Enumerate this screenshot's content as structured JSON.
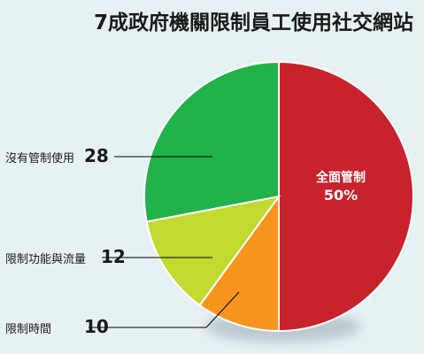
{
  "chart_data": {
    "type": "pie",
    "title": "7成政府機關限制員工使用社交網站",
    "slices": [
      {
        "label": "全面管制",
        "value": 50,
        "value_text": "50%",
        "color": "#c8232d"
      },
      {
        "label": "限制時間",
        "value": 10,
        "value_text": "10",
        "color": "#f7941e"
      },
      {
        "label": "限制功能與流量",
        "value": 12,
        "value_text": "12",
        "color": "#c2d92f"
      },
      {
        "label": "沒有管制使用",
        "value": 28,
        "value_text": "28",
        "color": "#22b24c"
      }
    ],
    "start_angle_deg": 0,
    "direction": "clockwise",
    "label_placement": "left-with-leader-lines",
    "background_color": "#e6f1f4",
    "text_color": "#1a1a1a",
    "leader_line_color": "#000000"
  }
}
